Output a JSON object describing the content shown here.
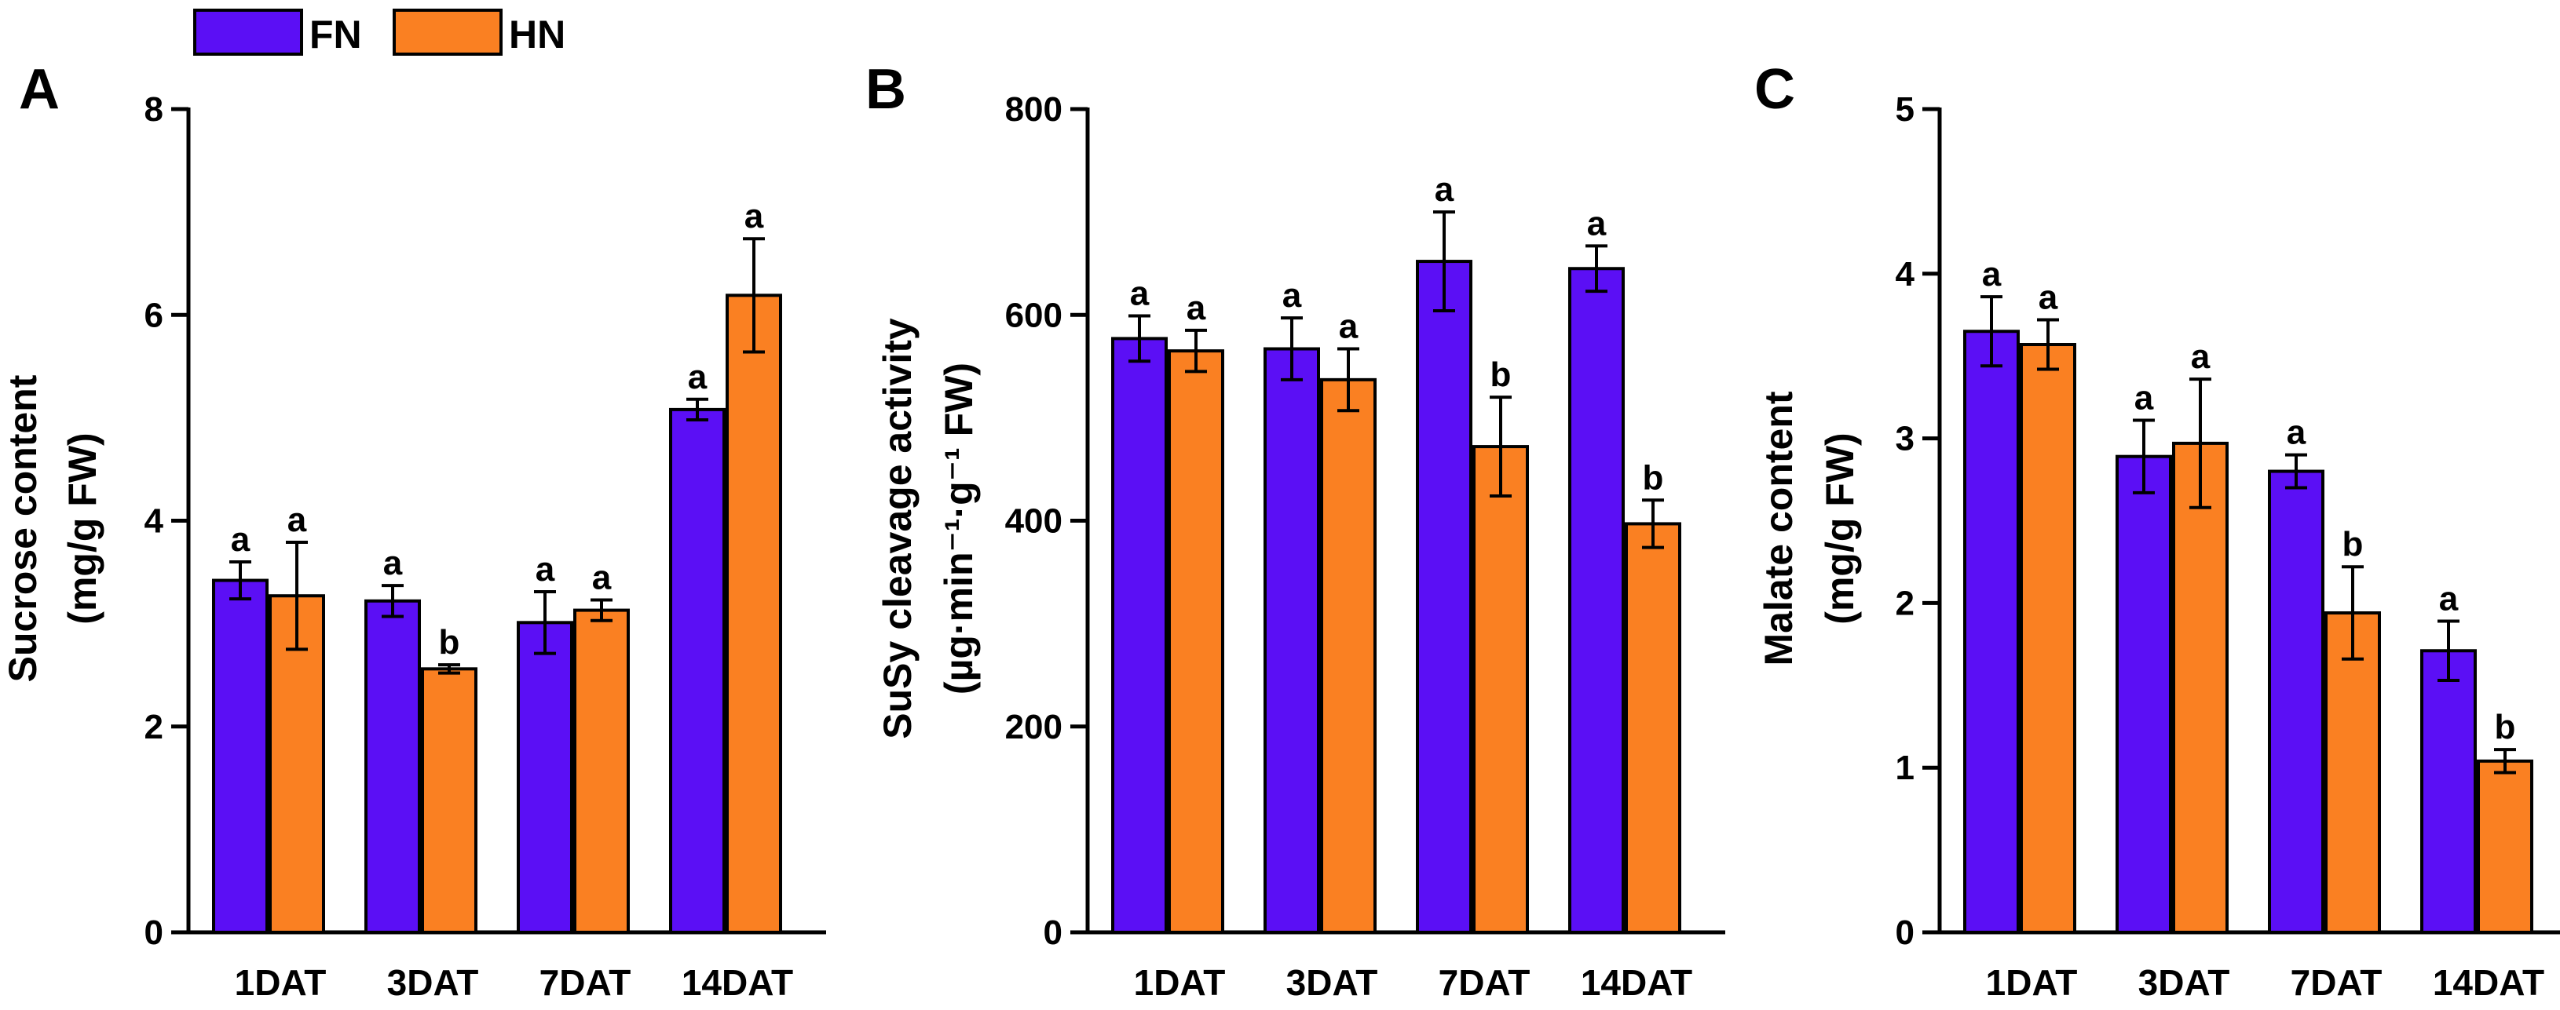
{
  "legend": {
    "placement": "top-left",
    "items": [
      {
        "label": "FN",
        "color": "#5b0ff5"
      },
      {
        "label": "HN",
        "color": "#fa8022"
      }
    ]
  },
  "chart_data": [
    {
      "panel_letter": "A",
      "type": "bar",
      "categories": [
        "1DAT",
        "3DAT",
        "7DAT",
        "14DAT"
      ],
      "ylabel": [
        "Sucrose content",
        "(mg/g FW)"
      ],
      "ylim": [
        0,
        8
      ],
      "yticks": [
        0,
        2,
        4,
        6,
        8
      ],
      "series": [
        {
          "name": "FN",
          "color": "#5b0ff5",
          "values": [
            3.42,
            3.22,
            3.01,
            5.08
          ],
          "errors": [
            0.18,
            0.15,
            0.3,
            0.1
          ],
          "letters": [
            "a",
            "a",
            "a",
            "a"
          ]
        },
        {
          "name": "HN",
          "color": "#fa8022",
          "values": [
            3.27,
            2.56,
            3.13,
            6.19
          ],
          "errors": [
            0.52,
            0.04,
            0.1,
            0.55
          ],
          "letters": [
            "a",
            "b",
            "a",
            "a"
          ]
        }
      ]
    },
    {
      "panel_letter": "B",
      "type": "bar",
      "categories": [
        "1DAT",
        "3DAT",
        "7DAT",
        "14DAT"
      ],
      "ylabel": [
        "SuSy cleavage activity",
        "(µg·min⁻¹·g⁻¹ FW)"
      ],
      "ylim": [
        0,
        800
      ],
      "yticks": [
        0,
        200,
        400,
        600,
        800
      ],
      "series": [
        {
          "name": "FN",
          "color": "#5b0ff5",
          "values": [
            577,
            567,
            652,
            645
          ],
          "errors": [
            22,
            30,
            48,
            22
          ],
          "letters": [
            "a",
            "a",
            "a",
            "a"
          ]
        },
        {
          "name": "HN",
          "color": "#fa8022",
          "values": [
            565,
            537,
            472,
            397
          ],
          "errors": [
            20,
            30,
            48,
            23
          ],
          "letters": [
            "a",
            "a",
            "b",
            "b"
          ]
        }
      ]
    },
    {
      "panel_letter": "C",
      "type": "bar",
      "categories": [
        "1DAT",
        "3DAT",
        "7DAT",
        "14DAT"
      ],
      "ylabel": [
        "Malate content",
        "(mg/g FW)"
      ],
      "ylim": [
        0,
        5
      ],
      "yticks": [
        0,
        1,
        2,
        3,
        4,
        5
      ],
      "series": [
        {
          "name": "FN",
          "color": "#5b0ff5",
          "values": [
            3.65,
            2.89,
            2.8,
            1.71
          ],
          "errors": [
            0.21,
            0.22,
            0.1,
            0.18
          ],
          "letters": [
            "a",
            "a",
            "a",
            "a"
          ]
        },
        {
          "name": "HN",
          "color": "#fa8022",
          "values": [
            3.57,
            2.97,
            1.94,
            1.04
          ],
          "errors": [
            0.15,
            0.39,
            0.28,
            0.07
          ],
          "letters": [
            "a",
            "a",
            "b",
            "b"
          ]
        }
      ]
    }
  ]
}
